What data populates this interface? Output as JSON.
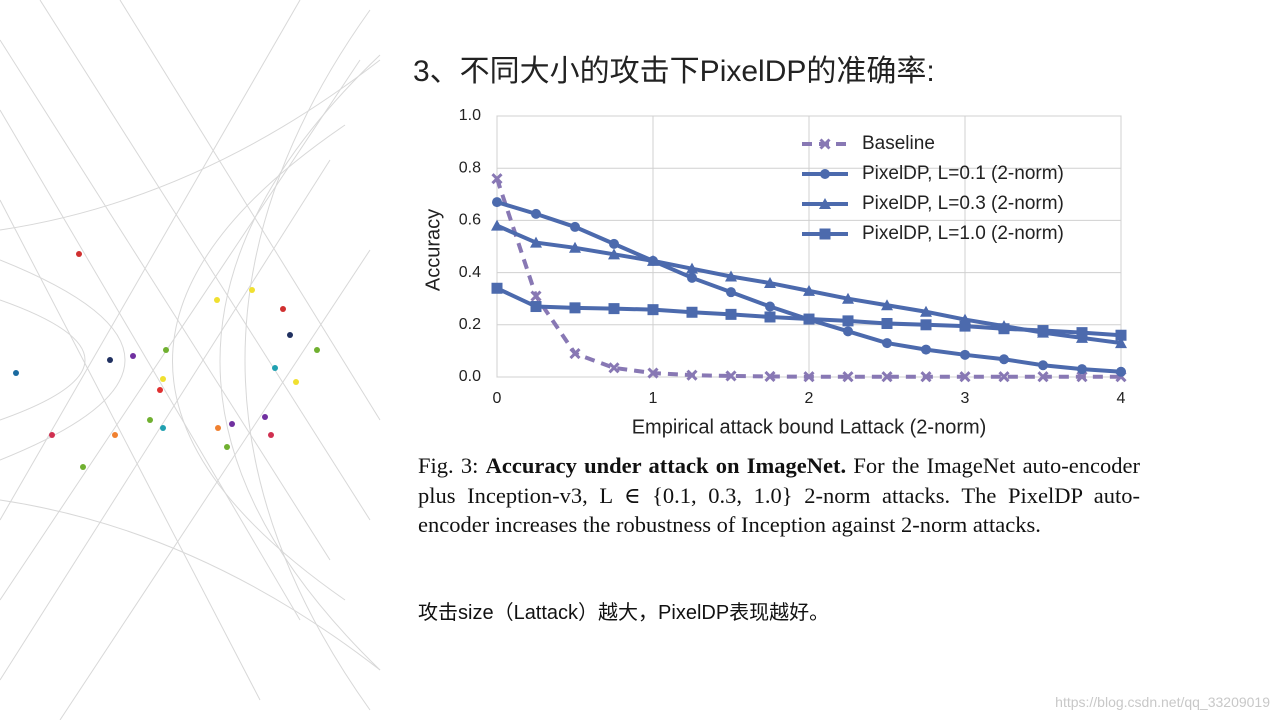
{
  "slide_title": "3、不同大小的攻击下PixelDP的准确率:",
  "chart_data": {
    "type": "line",
    "xlabel": "Empirical attack bound Lattack (2-norm)",
    "ylabel": "Accuracy",
    "x": [
      0,
      0.25,
      0.5,
      0.75,
      1,
      1.25,
      1.5,
      1.75,
      2,
      2.25,
      2.5,
      2.75,
      3,
      3.25,
      3.5,
      3.75,
      4
    ],
    "series": [
      {
        "name": "Baseline",
        "color": "#8878b4",
        "marker": "x",
        "dashed": true,
        "values": [
          0.76,
          0.31,
          0.09,
          0.035,
          0.015,
          0.007,
          0.004,
          0.002,
          0.001,
          0.001,
          0.001,
          0.001,
          0.001,
          0.001,
          0.001,
          0.001,
          0.001
        ]
      },
      {
        "name": "PixelDP, L=0.1 (2-norm)",
        "color": "#4c6aad",
        "marker": "circle",
        "dashed": false,
        "values": [
          0.67,
          0.625,
          0.575,
          0.51,
          0.445,
          0.38,
          0.325,
          0.27,
          0.22,
          0.175,
          0.13,
          0.105,
          0.085,
          0.068,
          0.045,
          0.03,
          0.02
        ]
      },
      {
        "name": "PixelDP, L=0.3 (2-norm)",
        "color": "#4c6aad",
        "marker": "triangle",
        "dashed": false,
        "values": [
          0.58,
          0.515,
          0.495,
          0.47,
          0.445,
          0.415,
          0.385,
          0.36,
          0.33,
          0.3,
          0.275,
          0.25,
          0.22,
          0.195,
          0.17,
          0.15,
          0.13
        ]
      },
      {
        "name": "PixelDP, L=1.0 (2-norm)",
        "color": "#4c6aad",
        "marker": "square",
        "dashed": false,
        "values": [
          0.34,
          0.27,
          0.265,
          0.262,
          0.258,
          0.248,
          0.24,
          0.23,
          0.222,
          0.215,
          0.205,
          0.2,
          0.195,
          0.185,
          0.178,
          0.17,
          0.16
        ]
      }
    ],
    "xlim": [
      0,
      4
    ],
    "xticks": [
      0,
      1,
      2,
      3,
      4
    ],
    "ylim": [
      0,
      1
    ],
    "yticks": [
      {
        "value": 0,
        "label": "0.0"
      },
      0.2,
      0.4,
      0.6,
      0.8,
      {
        "value": 1,
        "label": "1.0"
      }
    ],
    "grid": true,
    "legend": "upper right"
  },
  "caption": {
    "label": "Fig. 3:",
    "bold": "Accuracy under attack on ImageNet.",
    "body": "For the ImageNet auto-encoder plus Inception-v3, L ∈ {0.1, 0.3, 1.0} 2-norm attacks. The PixelDP auto-encoder increases the robustness of Inception against 2-norm attacks."
  },
  "note": "攻击size（Lattack）越大，PixelDP表现越好。",
  "watermark": "https://blog.csdn.net/qq_33209019"
}
